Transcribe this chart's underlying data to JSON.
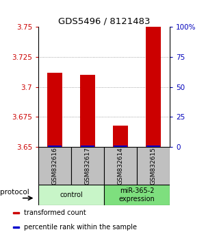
{
  "title": "GDS5496 / 8121483",
  "samples": [
    "GSM832616",
    "GSM832617",
    "GSM832614",
    "GSM832615"
  ],
  "red_values": [
    3.712,
    3.71,
    3.668,
    3.75
  ],
  "blue_values": [
    3.6515,
    3.6515,
    3.6515,
    3.6515
  ],
  "ylim_left": [
    3.65,
    3.75
  ],
  "ylim_right": [
    0,
    100
  ],
  "left_ticks": [
    3.65,
    3.675,
    3.7,
    3.725,
    3.75
  ],
  "right_ticks": [
    0,
    25,
    50,
    75,
    100
  ],
  "right_tick_labels": [
    "0",
    "25",
    "50",
    "75",
    "100%"
  ],
  "bar_width": 0.45,
  "red_color": "#cc0000",
  "blue_color": "#0000cc",
  "left_tick_color": "#cc0000",
  "right_tick_color": "#0000bb",
  "grid_color": "#888888",
  "bg_color": "#ffffff",
  "sample_box_color": "#c0c0c0",
  "protocol_label": "protocol",
  "group_defs": [
    {
      "label": "control",
      "start": 0,
      "end": 2,
      "color": "#c8f5c8"
    },
    {
      "label": "miR-365-2\nexpression",
      "start": 2,
      "end": 4,
      "color": "#7edf7e"
    }
  ],
  "legend_items": [
    {
      "color": "#cc0000",
      "label": "transformed count"
    },
    {
      "color": "#0000cc",
      "label": "percentile rank within the sample"
    }
  ],
  "bar_bottom": 3.65
}
